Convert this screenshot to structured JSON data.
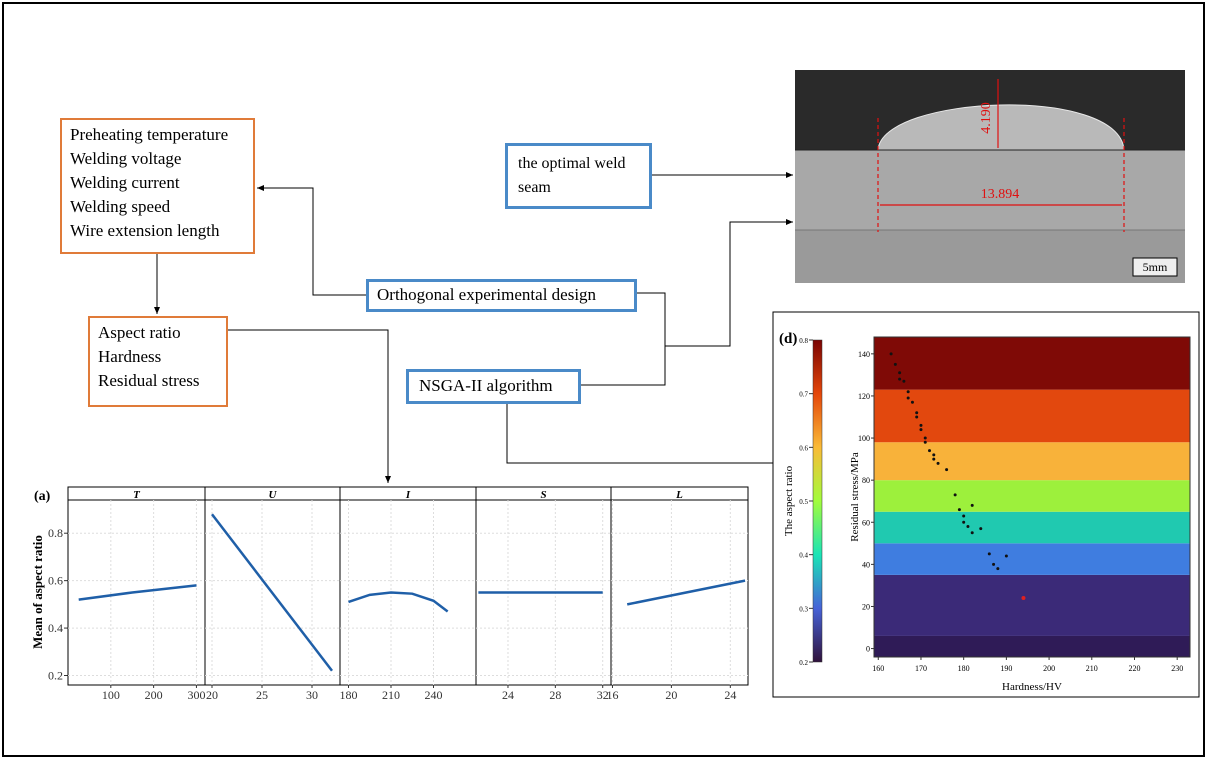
{
  "boxes": {
    "parameters": [
      "Preheating temperature",
      "Welding voltage",
      "Welding current",
      "Welding speed",
      "Wire extension length"
    ],
    "responses": [
      "Aspect ratio",
      "Hardness",
      "Residual stress"
    ],
    "orthogonal": "Orthogonal experimental design",
    "nsga": "NSGA-II algorithm",
    "optimal": "the optimal weld seam"
  },
  "weld_image": {
    "height_label": "4.190",
    "width_label": "13.894",
    "scale_label": "5mm"
  },
  "chart_data": [
    {
      "type": "line",
      "label": "(a)",
      "y_label": "Mean of aspect ratio",
      "ylim": [
        0.16,
        0.94
      ],
      "yticks": [
        0.2,
        0.4,
        0.6,
        0.8
      ],
      "color": "#1f5fa8",
      "grid": true,
      "panels": [
        {
          "name": "T",
          "xlim": [
            0,
            320
          ],
          "xticks": [
            100,
            200,
            300
          ],
          "x": [
            25,
            150,
            300
          ],
          "values": [
            0.52,
            0.55,
            0.58
          ]
        },
        {
          "name": "U",
          "xlim": [
            19.3,
            32.8
          ],
          "xticks": [
            20,
            25,
            30
          ],
          "x": [
            20,
            32
          ],
          "values": [
            0.88,
            0.22
          ]
        },
        {
          "name": "I",
          "xlim": [
            174,
            270
          ],
          "xticks": [
            180,
            210,
            240
          ],
          "x": [
            180,
            195,
            210,
            225,
            240,
            250
          ],
          "values": [
            0.51,
            0.54,
            0.55,
            0.545,
            0.515,
            0.47
          ]
        },
        {
          "name": "S",
          "xlim": [
            21.3,
            32.7
          ],
          "xticks": [
            24,
            28,
            32
          ],
          "x": [
            21.5,
            32
          ],
          "values": [
            0.55,
            0.55
          ]
        },
        {
          "name": "L",
          "xlim": [
            15.9,
            25.2
          ],
          "xticks": [
            16,
            20,
            24
          ],
          "x": [
            17,
            25
          ],
          "values": [
            0.5,
            0.6
          ]
        }
      ]
    },
    {
      "type": "contour",
      "label": "(d)",
      "x_label": "Hardness/HV",
      "y_label": "Residual stress/MPa",
      "colorbar_label": "The aspect ratio",
      "xlim": [
        159,
        233
      ],
      "xticks": [
        160,
        170,
        180,
        190,
        200,
        210,
        220,
        230
      ],
      "ylim": [
        -4,
        148
      ],
      "yticks": [
        0,
        20,
        40,
        60,
        80,
        100,
        120,
        140
      ],
      "clim": [
        0.2,
        0.8
      ],
      "cticks": [
        0.2,
        0.3,
        0.4,
        0.5,
        0.6,
        0.7,
        0.8
      ],
      "colorbar_colors": [
        "#30123b",
        "#4662d7",
        "#1ae4b6",
        "#a2fc3c",
        "#fabb37",
        "#e4460a",
        "#7a0403"
      ],
      "bands": [
        {
          "from": -4,
          "to": 6,
          "color": "#2f1b57"
        },
        {
          "from": 6,
          "to": 35,
          "color": "#3b2a78"
        },
        {
          "from": 35,
          "to": 50,
          "color": "#3f7de0"
        },
        {
          "from": 50,
          "to": 65,
          "color": "#20c9b0"
        },
        {
          "from": 65,
          "to": 80,
          "color": "#9df03c"
        },
        {
          "from": 80,
          "to": 98,
          "color": "#f8b23a"
        },
        {
          "from": 98,
          "to": 123,
          "color": "#e2480e"
        },
        {
          "from": 123,
          "to": 148,
          "color": "#7f0a06"
        }
      ],
      "points": {
        "color": "#111111",
        "x": [
          163,
          164,
          165,
          165,
          166,
          167,
          167,
          168,
          169,
          169,
          170,
          170,
          171,
          171,
          172,
          173,
          173,
          174,
          176,
          178,
          179,
          180,
          180,
          181,
          182,
          182,
          184,
          186,
          187,
          188,
          190
        ],
        "y": [
          140,
          135,
          131,
          128,
          127,
          122,
          119,
          117,
          112,
          110,
          106,
          104,
          100,
          98,
          94,
          92,
          90,
          88,
          85,
          73,
          66,
          63,
          60,
          58,
          55,
          68,
          57,
          45,
          40,
          38,
          44
        ]
      },
      "highlight": {
        "x": 194,
        "y": 24,
        "color": "#e02020"
      }
    }
  ]
}
